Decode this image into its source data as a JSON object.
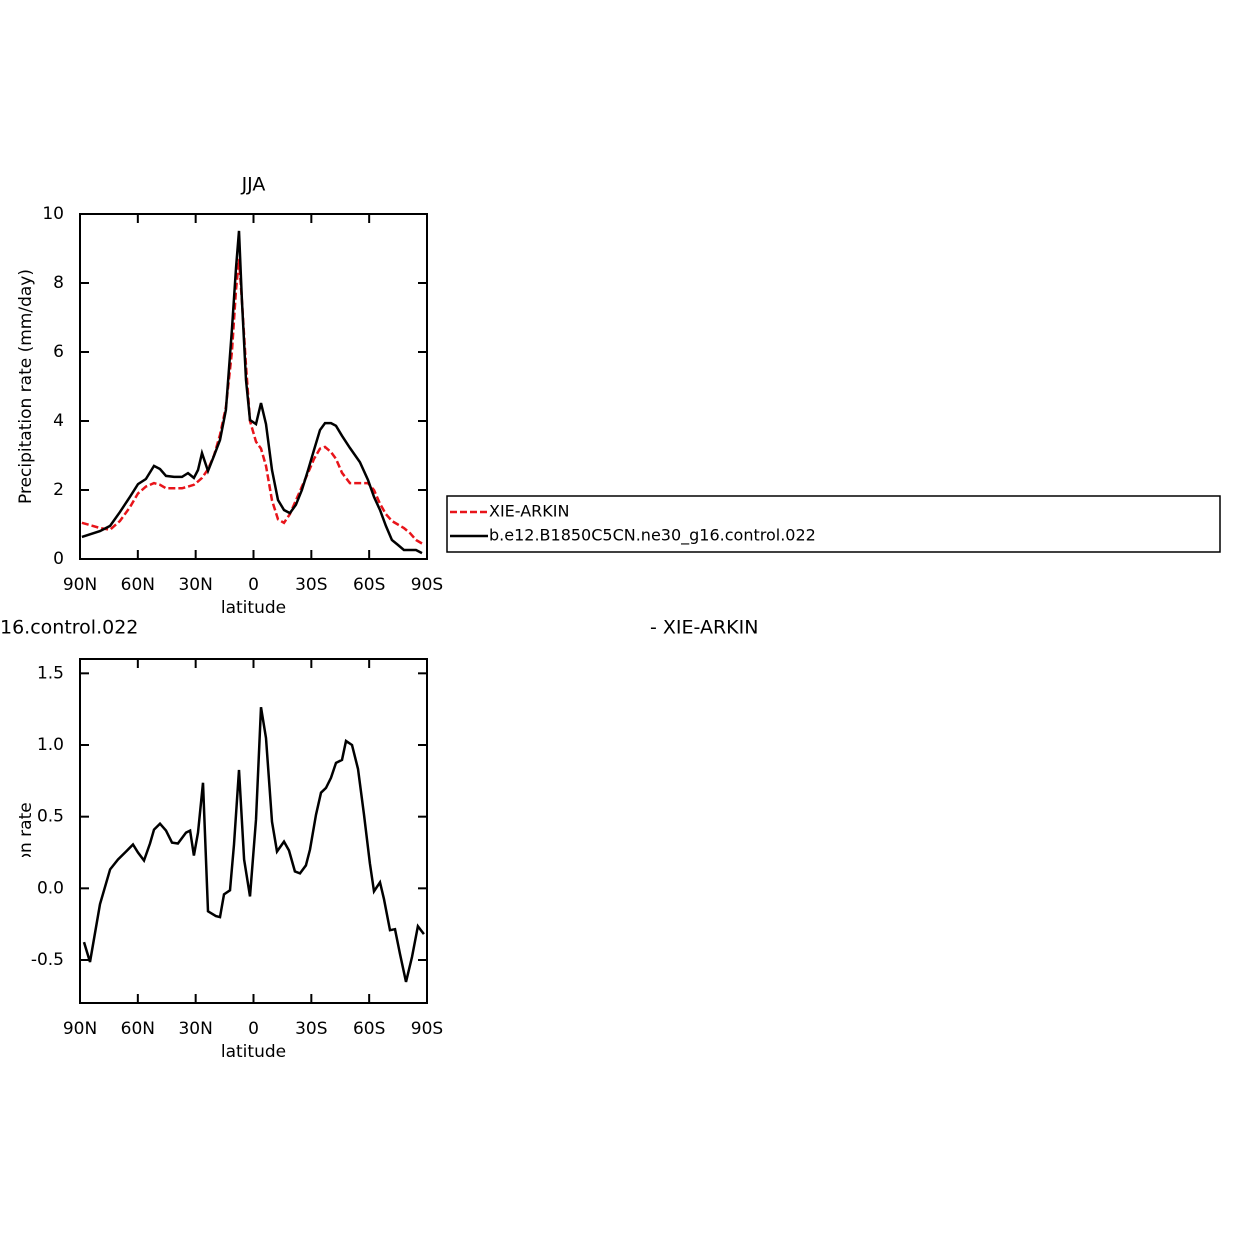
{
  "chart_data": [
    {
      "type": "line",
      "title": "JJA",
      "y_label": "Precipitation rate (mm/day)",
      "x_label": "latitude",
      "x": [
        89.0,
        79.6,
        74.4,
        69.3,
        64.1,
        59.9,
        55.8,
        51.6,
        48.5,
        45.4,
        41.2,
        37.1,
        34.0,
        30.9,
        28.8,
        26.7,
        23.6,
        20.5,
        17.4,
        14.3,
        11.2,
        9.1,
        7.5,
        6.0,
        3.9,
        1.8,
        -1.3,
        -3.9,
        -6.5,
        -9.6,
        -12.7,
        -15.8,
        -18.9,
        -22.0,
        -25.1,
        -28.3,
        -31.4,
        -34.5,
        -37.1,
        -40.2,
        -42.8,
        -45.9,
        -50.0,
        -55.2,
        -59.4,
        -62.5,
        -65.6,
        -68.7,
        -71.8,
        -74.9,
        -78.0,
        -81.2,
        -84.3,
        -87.4
      ],
      "series": [
        {
          "name": "XIE-ARKIN",
          "color": "#e8141a",
          "line_style": "dashed",
          "values": [
            1.05,
            0.9,
            0.85,
            1.1,
            1.5,
            1.9,
            2.1,
            2.2,
            2.15,
            2.05,
            2.05,
            2.05,
            2.1,
            2.15,
            2.25,
            2.35,
            2.6,
            3.0,
            3.6,
            4.4,
            6.0,
            7.8,
            8.7,
            7.5,
            5.6,
            4.0,
            3.4,
            3.2,
            2.7,
            1.7,
            1.15,
            1.05,
            1.3,
            1.7,
            2.1,
            2.5,
            2.9,
            3.2,
            3.25,
            3.1,
            2.9,
            2.5,
            2.2,
            2.2,
            2.2,
            2.0,
            1.6,
            1.3,
            1.1,
            1.0,
            0.9,
            0.75,
            0.55,
            0.45
          ]
        },
        {
          "name": "b.e12.B1850C5CN.ne30_g16.control.022",
          "color": "#000000",
          "line_style": "solid",
          "values": [
            0.64,
            0.81,
            0.96,
            1.36,
            1.8,
            2.17,
            2.32,
            2.7,
            2.61,
            2.41,
            2.38,
            2.38,
            2.49,
            2.35,
            2.58,
            3.07,
            2.55,
            2.99,
            3.45,
            4.32,
            6.64,
            8.43,
            9.51,
            7.51,
            5.19,
            4.03,
            3.91,
            4.52,
            3.91,
            2.58,
            1.71,
            1.42,
            1.33,
            1.57,
            2.0,
            2.58,
            3.16,
            3.74,
            3.94,
            3.94,
            3.86,
            3.57,
            3.22,
            2.81,
            2.29,
            1.8,
            1.42,
            0.96,
            0.55,
            0.41,
            0.26,
            0.26,
            0.26,
            0.17
          ]
        }
      ],
      "xlim": [
        90,
        -90
      ],
      "xticks": [
        {
          "value": 90,
          "label": "90N"
        },
        {
          "value": 60,
          "label": "60N"
        },
        {
          "value": 30,
          "label": "30N"
        },
        0,
        {
          "value": -30,
          "label": "30S"
        },
        {
          "value": -60,
          "label": "60S"
        },
        {
          "value": -90,
          "label": "90S"
        }
      ],
      "ylim": [
        0,
        10
      ],
      "yticks": [
        0,
        2,
        4,
        6,
        8,
        10
      ],
      "legend": "right"
    },
    {
      "type": "line",
      "left_title": "16.control.022",
      "right_title": "- XIE-ARKIN",
      "y_label": "Precipitation rate (mm/day)",
      "x_label": "latitude",
      "x": [
        87.9,
        84.8,
        79.6,
        74.4,
        70.3,
        66.1,
        62.5,
        59.9,
        56.8,
        53.7,
        51.6,
        48.5,
        45.4,
        42.3,
        39.2,
        35.0,
        32.9,
        30.9,
        28.8,
        26.2,
        23.6,
        19.5,
        17.4,
        15.3,
        12.2,
        10.1,
        7.5,
        4.9,
        1.8,
        -1.3,
        -3.9,
        -6.5,
        -9.6,
        -12.2,
        -15.8,
        -18.4,
        -21.5,
        -24.1,
        -27.2,
        -29.3,
        -32.4,
        -35.0,
        -37.6,
        -40.2,
        -42.8,
        -45.9,
        -48.0,
        -51.1,
        -54.2,
        -57.3,
        -60.4,
        -62.5,
        -65.6,
        -67.7,
        -70.8,
        -73.4,
        -76.0,
        -79.1,
        -82.2,
        -85.3,
        -88.4
      ],
      "series": [
        {
          "color": "#000000",
          "line_style": "solid",
          "values": [
            -0.375,
            -0.514,
            -0.111,
            0.132,
            0.201,
            0.257,
            0.306,
            0.25,
            0.194,
            0.313,
            0.41,
            0.451,
            0.403,
            0.319,
            0.313,
            0.389,
            0.403,
            0.229,
            0.389,
            0.736,
            -0.16,
            -0.194,
            -0.201,
            -0.042,
            -0.014,
            0.306,
            0.826,
            0.201,
            -0.056,
            0.479,
            1.264,
            1.049,
            0.465,
            0.257,
            0.326,
            0.264,
            0.118,
            0.104,
            0.16,
            0.271,
            0.514,
            0.667,
            0.701,
            0.771,
            0.875,
            0.896,
            1.028,
            1.0,
            0.833,
            0.514,
            0.174,
            -0.021,
            0.042,
            -0.076,
            -0.292,
            -0.285,
            -0.458,
            -0.653,
            -0.479,
            -0.264,
            -0.319
          ]
        }
      ],
      "xlim": [
        90,
        -90
      ],
      "xticks": [
        {
          "value": 90,
          "label": "90N"
        },
        {
          "value": 60,
          "label": "60N"
        },
        {
          "value": 30,
          "label": "30N"
        },
        0,
        {
          "value": -30,
          "label": "30S"
        },
        {
          "value": -60,
          "label": "60S"
        },
        {
          "value": -90,
          "label": "90S"
        }
      ],
      "ylim": [
        -0.8,
        1.6
      ],
      "yticks": [
        -0.5,
        {
          "value": 0,
          "label": "0.0"
        },
        0.5,
        {
          "value": 1,
          "label": "1.0"
        },
        1.5
      ]
    }
  ]
}
